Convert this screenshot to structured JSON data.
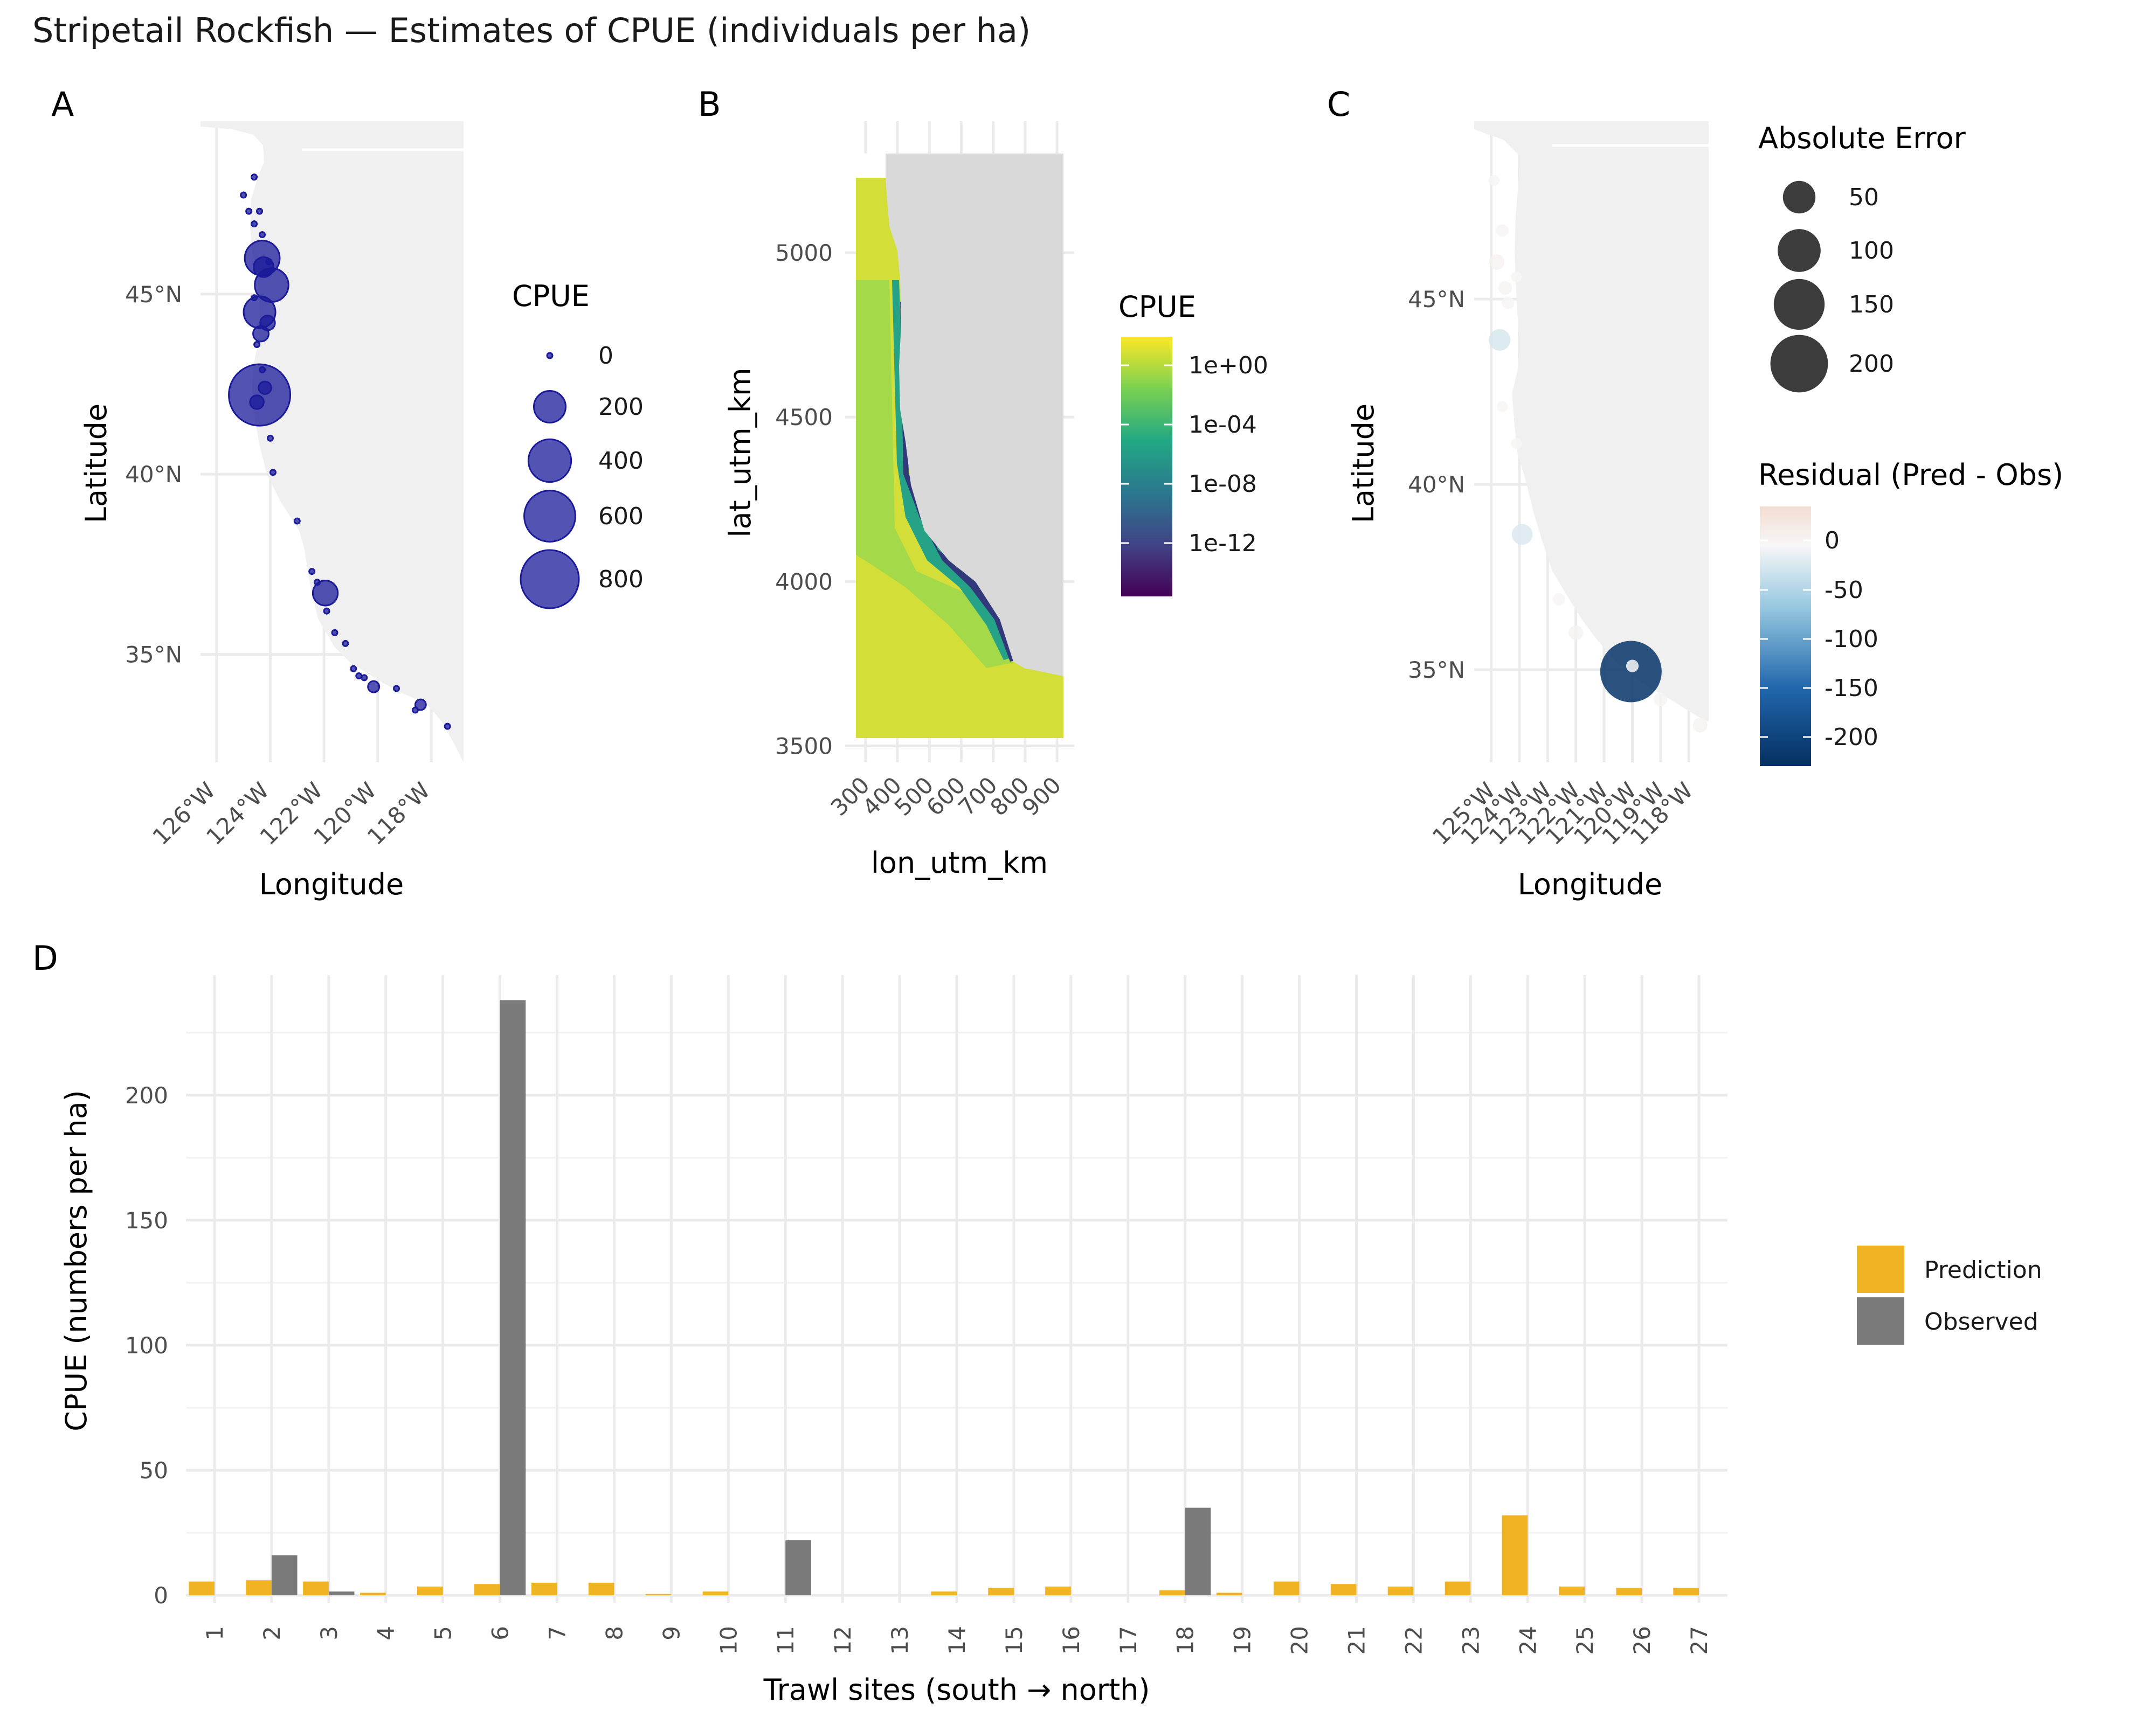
{
  "title": "Stripetail Rockfish — Estimates of CPUE (individuals per ha)",
  "panels": {
    "a": {
      "tag": "A",
      "xlabel": "Longitude",
      "ylabel": "Latitude",
      "xticks": [
        -126,
        -124,
        -122,
        -120,
        -118
      ],
      "xtick_labels": [
        "126°W",
        "124°W",
        "122°W",
        "120°W",
        "118°W"
      ],
      "yticks": [
        35,
        40,
        45
      ],
      "ytick_labels": [
        "35°N",
        "40°N",
        "45°N"
      ],
      "xlim": [
        -126.6,
        -116.8
      ],
      "ylim": [
        32.0,
        49.8
      ],
      "point_color": "#1a1a9a",
      "legend": {
        "title": "CPUE",
        "breaks": [
          0,
          200,
          400,
          600,
          800
        ],
        "labels": [
          "0",
          "200",
          "400",
          "600",
          "800"
        ]
      },
      "points": [
        {
          "lon": -124.4,
          "lat": 42.2,
          "cpue": 900
        },
        {
          "lon": -124.3,
          "lat": 46.0,
          "cpue": 250
        },
        {
          "lon": -123.95,
          "lat": 45.25,
          "cpue": 230
        },
        {
          "lon": -124.4,
          "lat": 44.5,
          "cpue": 200
        },
        {
          "lon": -121.95,
          "lat": 36.7,
          "cpue": 110
        },
        {
          "lon": -124.25,
          "lat": 45.75,
          "cpue": 60
        },
        {
          "lon": -124.35,
          "lat": 43.9,
          "cpue": 30
        },
        {
          "lon": -124.1,
          "lat": 44.2,
          "cpue": 25
        },
        {
          "lon": -124.5,
          "lat": 42.0,
          "cpue": 20
        },
        {
          "lon": -124.2,
          "lat": 42.4,
          "cpue": 15
        },
        {
          "lon": -120.15,
          "lat": 34.1,
          "cpue": 10
        },
        {
          "lon": -118.4,
          "lat": 33.6,
          "cpue": 8
        },
        {
          "lon": -124.6,
          "lat": 48.25,
          "cpue": 0
        },
        {
          "lon": -125.0,
          "lat": 47.75,
          "cpue": 0
        },
        {
          "lon": -124.8,
          "lat": 47.3,
          "cpue": 0
        },
        {
          "lon": -124.4,
          "lat": 47.3,
          "cpue": 0
        },
        {
          "lon": -124.6,
          "lat": 46.95,
          "cpue": 0
        },
        {
          "lon": -124.3,
          "lat": 46.65,
          "cpue": 0
        },
        {
          "lon": -124.05,
          "lat": 45.9,
          "cpue": 0
        },
        {
          "lon": -124.6,
          "lat": 44.9,
          "cpue": 0
        },
        {
          "lon": -124.5,
          "lat": 43.6,
          "cpue": 0
        },
        {
          "lon": -124.3,
          "lat": 42.9,
          "cpue": 0
        },
        {
          "lon": -124.0,
          "lat": 41.0,
          "cpue": 0
        },
        {
          "lon": -123.9,
          "lat": 40.05,
          "cpue": 0
        },
        {
          "lon": -123.0,
          "lat": 38.7,
          "cpue": 0
        },
        {
          "lon": -122.45,
          "lat": 37.3,
          "cpue": 0
        },
        {
          "lon": -122.25,
          "lat": 37.0,
          "cpue": 0
        },
        {
          "lon": -121.9,
          "lat": 36.2,
          "cpue": 0
        },
        {
          "lon": -121.6,
          "lat": 35.6,
          "cpue": 0
        },
        {
          "lon": -121.2,
          "lat": 35.3,
          "cpue": 0
        },
        {
          "lon": -120.9,
          "lat": 34.6,
          "cpue": 0
        },
        {
          "lon": -120.7,
          "lat": 34.4,
          "cpue": 0
        },
        {
          "lon": -120.5,
          "lat": 34.35,
          "cpue": 0
        },
        {
          "lon": -119.3,
          "lat": 34.05,
          "cpue": 0
        },
        {
          "lon": -118.6,
          "lat": 33.45,
          "cpue": 0
        },
        {
          "lon": -117.4,
          "lat": 33.0,
          "cpue": 0
        }
      ]
    },
    "b": {
      "tag": "B",
      "xlabel": "lon_utm_km",
      "ylabel": "lat_utm_km",
      "xticks": [
        300,
        400,
        500,
        600,
        700,
        800,
        900
      ],
      "xtick_labels": [
        "300",
        "400",
        "500",
        "600",
        "700",
        "800",
        "900"
      ],
      "yticks": [
        3500,
        4000,
        4500,
        5000
      ],
      "ytick_labels": [
        "3500",
        "4000",
        "4500",
        "5000"
      ],
      "xlim": [
        270,
        920
      ],
      "ylim": [
        3450,
        5400
      ],
      "legend": {
        "title": "CPUE",
        "labels": [
          "1e+00",
          "1e-04",
          "1e-08",
          "1e-12"
        ],
        "colors": [
          "#fde725",
          "#7ad151",
          "#22a884",
          "#2a788e",
          "#414487",
          "#440154"
        ]
      }
    },
    "c": {
      "tag": "C",
      "xlabel": "Longitude",
      "ylabel": "Latitude",
      "xticks": [
        -125,
        -124,
        -123,
        -122,
        -121,
        -120,
        -119,
        -118
      ],
      "xtick_labels": [
        "125°W",
        "124°W",
        "123°W",
        "122°W",
        "121°W",
        "120°W",
        "119°W",
        "118°W"
      ],
      "yticks": [
        35,
        40,
        45
      ],
      "ytick_labels": [
        "35°N",
        "40°N",
        "45°N"
      ],
      "xlim": [
        -125.6,
        -117.3
      ],
      "ylim": [
        32.5,
        49.8
      ],
      "size_legend": {
        "title": "Absolute Error",
        "breaks": [
          50,
          100,
          150,
          200
        ],
        "labels": [
          "50",
          "100",
          "150",
          "200"
        ]
      },
      "color_legend": {
        "title": "Residual (Pred - Obs)",
        "labels": [
          "0",
          "-50",
          "-100",
          "-150",
          "-200"
        ],
        "colors": [
          "#f3ddd1",
          "#f7f7f7",
          "#92c5de",
          "#2166ac",
          "#053061"
        ]
      },
      "points": [
        {
          "lon": -120.05,
          "lat": 34.95,
          "resid": -232
        },
        {
          "lon": -124.8,
          "lat": 46.0,
          "resid": 5
        },
        {
          "lon": -124.7,
          "lat": 43.9,
          "resid": -16
        },
        {
          "lon": -123.9,
          "lat": 38.65,
          "resid": -14
        },
        {
          "lon": -120.0,
          "lat": 35.1,
          "resid": 2
        },
        {
          "lon": -124.9,
          "lat": 48.2,
          "resid": 1
        },
        {
          "lon": -124.6,
          "lat": 46.85,
          "resid": 2
        },
        {
          "lon": -124.5,
          "lat": 45.3,
          "resid": 3
        },
        {
          "lon": -124.4,
          "lat": 44.9,
          "resid": 2
        },
        {
          "lon": -124.1,
          "lat": 45.6,
          "resid": 1
        },
        {
          "lon": -124.6,
          "lat": 42.1,
          "resid": 1
        },
        {
          "lon": -124.1,
          "lat": 41.1,
          "resid": 1
        },
        {
          "lon": -122.6,
          "lat": 36.9,
          "resid": 2
        },
        {
          "lon": -122.0,
          "lat": 36.0,
          "resid": 4
        },
        {
          "lon": -119.0,
          "lat": 34.2,
          "resid": 3
        },
        {
          "lon": -117.6,
          "lat": 33.5,
          "resid": 4
        }
      ]
    },
    "d": {
      "tag": "D",
      "xlabel": "Trawl sites (south → north)",
      "ylabel": "CPUE (numbers per ha)",
      "yticks": [
        0,
        50,
        100,
        150,
        200
      ],
      "ytick_labels": [
        "0",
        "50",
        "100",
        "150",
        "200"
      ],
      "ylim": [
        -3,
        248
      ]
    }
  },
  "chart_data": [
    {
      "type": "scatter",
      "panel": "A",
      "xlabel": "Longitude",
      "ylabel": "Latitude",
      "size_variable": "CPUE"
    },
    {
      "type": "heatmap",
      "panel": "B",
      "xlabel": "lon_utm_km",
      "ylabel": "lat_utm_km",
      "xlim": [
        270,
        920
      ],
      "ylim": [
        3450,
        5400
      ],
      "color_scale": "viridis (log10 CPUE)"
    },
    {
      "type": "scatter",
      "panel": "C",
      "xlabel": "Longitude",
      "ylabel": "Latitude",
      "size_variable": "Absolute Error",
      "color_variable": "Residual (Pred - Obs)"
    },
    {
      "type": "bar",
      "panel": "D",
      "categories": [
        "1",
        "2",
        "3",
        "4",
        "5",
        "6",
        "7",
        "8",
        "9",
        "10",
        "11",
        "12",
        "13",
        "14",
        "15",
        "16",
        "17",
        "18",
        "19",
        "20",
        "21",
        "22",
        "23",
        "24",
        "25",
        "26",
        "27"
      ],
      "series": [
        {
          "name": "Prediction",
          "color": "#f0b323",
          "values": [
            5.5,
            6,
            5.5,
            1,
            3.5,
            4.5,
            5,
            5,
            0.5,
            1.5,
            0,
            0,
            0,
            1.5,
            3,
            3.5,
            0,
            2,
            1,
            5.5,
            4.5,
            3.5,
            5.5,
            32,
            3.5,
            3,
            3
          ]
        },
        {
          "name": "Observed",
          "color": "#7a7a7a",
          "values": [
            0,
            16,
            1.5,
            0,
            0,
            238,
            0,
            0,
            0,
            0,
            22,
            0,
            0,
            0,
            0,
            0,
            0,
            35,
            0,
            0,
            0,
            0,
            0,
            0,
            0,
            0,
            0
          ]
        }
      ],
      "xlabel": "Trawl sites (south → north)",
      "ylabel": "CPUE (numbers per ha)",
      "ylim": [
        0,
        248
      ],
      "legend": "right"
    }
  ]
}
